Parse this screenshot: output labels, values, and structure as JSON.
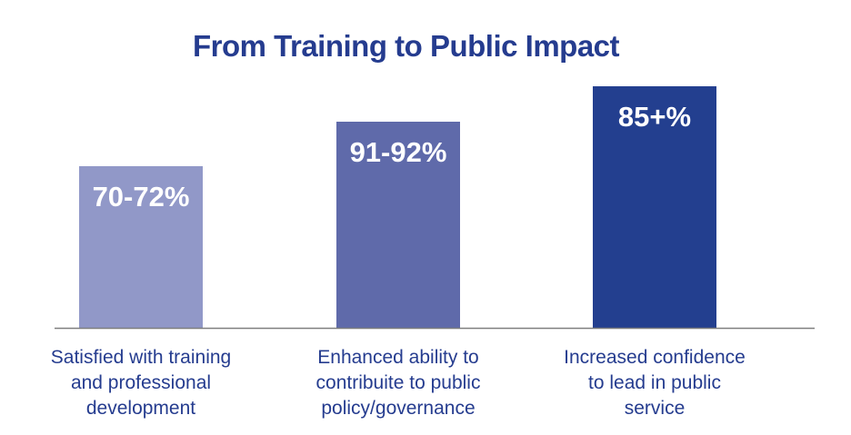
{
  "chart_data": {
    "type": "bar",
    "title": "From Training to Public Impact",
    "categories": [
      "Satisfied with training and professional development",
      "Enhanced ability to contribuite to public policy/governance",
      "Increased confidence to lead in public service"
    ],
    "category_lines": [
      [
        "Satisfied with training",
        "and professional",
        "development"
      ],
      [
        "Enhanced ability to",
        "contribuite to public",
        "policy/governance"
      ],
      [
        "Increased confidence",
        "to lead in public",
        "service"
      ]
    ],
    "values": [
      71,
      91.5,
      85
    ],
    "value_labels": [
      "70-72%",
      "91-92%",
      "85+%"
    ],
    "colors": [
      "#9198c8",
      "#5f6aaa",
      "#233f8f"
    ],
    "axis_color": "#7f7f7f",
    "ylim": [
      0,
      100
    ],
    "grid": false,
    "legend": "none"
  }
}
